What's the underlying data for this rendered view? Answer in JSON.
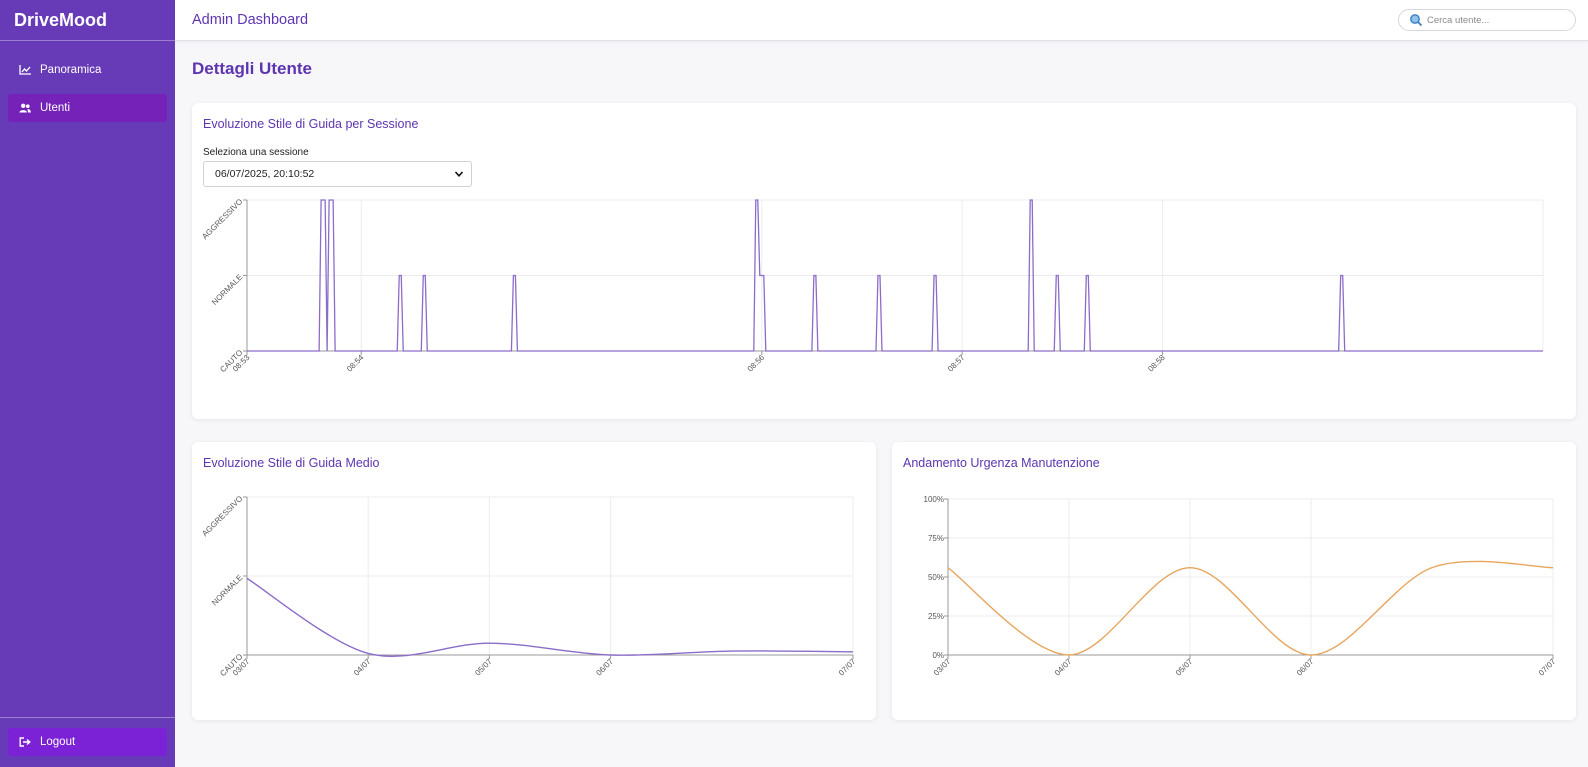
{
  "app": {
    "brand": "DriveMood",
    "topbar_title": "Admin Dashboard"
  },
  "sidebar": {
    "items": [
      {
        "label": "Panoramica",
        "icon": "chart-icon",
        "active": false
      },
      {
        "label": "Utenti",
        "icon": "users-icon",
        "active": true
      }
    ],
    "logout_label": "Logout"
  },
  "search": {
    "placeholder": "Cerca utente..."
  },
  "page": {
    "title": "Dettagli Utente"
  },
  "session_card": {
    "title": "Evoluzione Stile di Guida per Sessione",
    "select_label": "Seleziona una sessione",
    "selected_session": "06/07/2025, 20:10:52"
  },
  "avg_card": {
    "title": "Evoluzione Stile di Guida Medio"
  },
  "maint_card": {
    "title": "Andamento Urgenza Manutenzione"
  },
  "colors": {
    "sidebar": "#673ab7",
    "accent": "#5e35b1",
    "style_line": "#8c6cc9",
    "urgency_line": "#e8a55c"
  },
  "chart_data": [
    {
      "type": "line",
      "name": "session_style",
      "step": true,
      "y_categories": [
        "CAUTO",
        "NORMALE",
        "AGGRESSIVO"
      ],
      "x_ticks": [
        "08:53",
        "08:54",
        "08:56",
        "08:57",
        "08:58"
      ],
      "x_tick_minutes": [
        0,
        0.57,
        2.57,
        3.57,
        4.57
      ],
      "xlim_minutes": [
        0,
        6.47
      ],
      "ylim": [
        0,
        2
      ],
      "points": [
        [
          0,
          0
        ],
        [
          0.36,
          0
        ],
        [
          0.37,
          2
        ],
        [
          0.39,
          2
        ],
        [
          0.4,
          0
        ],
        [
          0.4,
          0
        ],
        [
          0.41,
          2
        ],
        [
          0.43,
          2
        ],
        [
          0.44,
          0
        ],
        [
          0.75,
          0
        ],
        [
          0.76,
          1
        ],
        [
          0.77,
          1
        ],
        [
          0.78,
          0
        ],
        [
          0.87,
          0
        ],
        [
          0.88,
          1
        ],
        [
          0.89,
          1
        ],
        [
          0.9,
          0
        ],
        [
          1.32,
          0
        ],
        [
          1.33,
          1
        ],
        [
          1.34,
          1
        ],
        [
          1.35,
          0
        ],
        [
          2.53,
          0
        ],
        [
          2.54,
          2
        ],
        [
          2.55,
          2
        ],
        [
          2.56,
          1
        ],
        [
          2.58,
          1
        ],
        [
          2.59,
          0
        ],
        [
          2.82,
          0
        ],
        [
          2.83,
          1
        ],
        [
          2.84,
          1
        ],
        [
          2.85,
          0
        ],
        [
          3.14,
          0
        ],
        [
          3.15,
          1
        ],
        [
          3.16,
          1
        ],
        [
          3.17,
          0
        ],
        [
          3.42,
          0
        ],
        [
          3.43,
          1
        ],
        [
          3.44,
          1
        ],
        [
          3.45,
          0
        ],
        [
          3.9,
          0
        ],
        [
          3.91,
          2
        ],
        [
          3.92,
          2
        ],
        [
          3.93,
          0
        ],
        [
          4.03,
          0
        ],
        [
          4.04,
          1
        ],
        [
          4.05,
          1
        ],
        [
          4.06,
          0
        ],
        [
          4.18,
          0
        ],
        [
          4.19,
          1
        ],
        [
          4.2,
          1
        ],
        [
          4.21,
          0
        ],
        [
          5.45,
          0
        ],
        [
          5.46,
          1
        ],
        [
          5.47,
          1
        ],
        [
          5.48,
          0
        ],
        [
          6.47,
          0
        ]
      ],
      "grid": true
    },
    {
      "type": "line",
      "name": "avg_style",
      "smooth": true,
      "y_categories": [
        "CAUTO",
        "NORMALE",
        "AGGRESSIVO"
      ],
      "categories": [
        "03/07",
        "04/07",
        "05/07",
        "06/07",
        "07/07"
      ],
      "x_positions": [
        0,
        1,
        2,
        3,
        5
      ],
      "xlim": [
        0,
        5
      ],
      "ylim": [
        0,
        2
      ],
      "values": [
        0.97,
        0.02,
        0.15,
        0.0,
        0.04
      ],
      "extra_points": [
        [
          4,
          0.05
        ]
      ],
      "grid": true
    },
    {
      "type": "line",
      "name": "maintenance_urgency",
      "smooth": true,
      "y_ticks": [
        "0%",
        "25%",
        "50%",
        "75%",
        "100%"
      ],
      "categories": [
        "03/07",
        "04/07",
        "05/07",
        "06/07",
        "07/07"
      ],
      "x_positions": [
        0,
        1,
        2,
        3,
        5
      ],
      "xlim": [
        0,
        5
      ],
      "ylim": [
        0,
        100
      ],
      "values": [
        56,
        0,
        56,
        0,
        56
      ],
      "extra_points": [
        [
          4,
          56
        ]
      ],
      "grid": true
    }
  ]
}
